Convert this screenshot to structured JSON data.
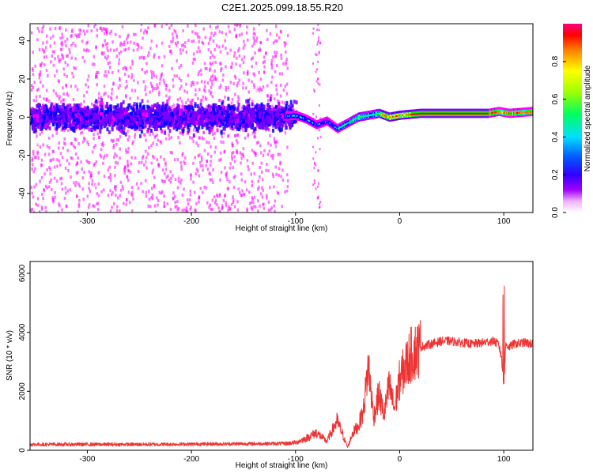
{
  "title": "C2E1.2025.099.18.55.R20",
  "chart_data": [
    {
      "type": "heatmap",
      "xlabel": "Height of straight line (km)",
      "ylabel": "Frequency (Hz)",
      "xlim": [
        -355,
        128
      ],
      "ylim": [
        -50,
        49
      ],
      "xticks": [
        -300,
        -200,
        -100,
        0,
        100
      ],
      "yticks": [
        -40,
        -20,
        0,
        20,
        40
      ],
      "grid": false,
      "colorbar": {
        "label": "Normalized spectral amplitude",
        "range": [
          0,
          1
        ],
        "ticks": [
          0.0,
          0.2,
          0.4,
          0.6,
          0.8
        ],
        "colormap": [
          "#ffffff",
          "#ff00ff",
          "#8000ff",
          "#0000ff",
          "#00ffff",
          "#00ff00",
          "#ffff00",
          "#ff8000",
          "#ff0000",
          "#ff0080"
        ]
      },
      "ridge": {
        "x": [
          -355,
          -300,
          -200,
          -120,
          -100,
          -90,
          -80,
          -70,
          -60,
          -50,
          -40,
          -30,
          -20,
          -10,
          0,
          20,
          60,
          85,
          95,
          105,
          128
        ],
        "frequency": [
          0,
          0,
          0,
          0,
          1,
          -1,
          -4,
          -2,
          -6,
          -3,
          0,
          1,
          2,
          0,
          1,
          2,
          2,
          2,
          3,
          2,
          3
        ]
      }
    },
    {
      "type": "line",
      "xlabel": "Height of straight line (km)",
      "ylabel": "SNR (10 * v/v)",
      "xlim": [
        -355,
        128
      ],
      "ylim": [
        0,
        6400
      ],
      "xticks": [
        -300,
        -200,
        -100,
        0,
        100
      ],
      "yticks": [
        0,
        2000,
        4000,
        6000
      ],
      "grid": false,
      "color": "#ee3333",
      "x": [
        -355,
        -300,
        -250,
        -200,
        -150,
        -110,
        -100,
        -90,
        -80,
        -70,
        -60,
        -50,
        -45,
        -40,
        -35,
        -30,
        -25,
        -20,
        -15,
        -10,
        -5,
        0,
        5,
        10,
        20,
        30,
        40,
        50,
        60,
        70,
        80,
        90,
        95,
        98,
        100,
        102,
        105,
        110,
        120,
        128
      ],
      "values": [
        200,
        200,
        200,
        210,
        220,
        230,
        260,
        400,
        600,
        300,
        1000,
        100,
        600,
        800,
        1300,
        2900,
        1100,
        1900,
        1200,
        2200,
        1400,
        2400,
        2800,
        3200,
        3500,
        3600,
        3700,
        3700,
        3650,
        3600,
        3650,
        3700,
        3600,
        3100,
        2200,
        3600,
        3500,
        3600,
        3650,
        3600
      ]
    }
  ]
}
